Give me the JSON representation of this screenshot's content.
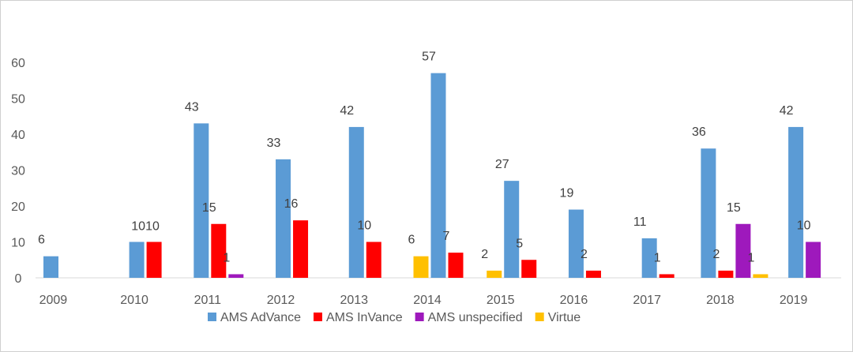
{
  "chart_data": {
    "type": "bar",
    "title": "",
    "xlabel": "",
    "ylabel": "",
    "ylim": [
      0,
      60
    ],
    "yticks": [
      0,
      10,
      20,
      30,
      40,
      50,
      60
    ],
    "grid": false,
    "legend_position": "bottom",
    "categories": [
      "2009",
      "2010",
      "2011",
      "2012",
      "2013",
      "2014",
      "2015",
      "2016",
      "2017",
      "2018",
      "2019"
    ],
    "series": [
      {
        "name": "AMS AdVance",
        "color": "#5B9BD5",
        "values": [
          6,
          10,
          43,
          33,
          42,
          57,
          27,
          19,
          11,
          36,
          42
        ]
      },
      {
        "name": "AMS InVance",
        "color": "#FF0000",
        "values": [
          null,
          10,
          15,
          16,
          10,
          7,
          5,
          2,
          1,
          2,
          null
        ]
      },
      {
        "name": "AMS unspecified",
        "color": "#9E19BC",
        "values": [
          null,
          null,
          1,
          null,
          null,
          null,
          null,
          null,
          null,
          15,
          10
        ]
      },
      {
        "name": "Virtue",
        "color": "#FFC000",
        "values": [
          null,
          null,
          null,
          null,
          null,
          6,
          2,
          null,
          null,
          1,
          null
        ]
      }
    ],
    "bar_order": [
      [
        [
          "AMS AdVance"
        ]
      ],
      [
        [
          "AMS AdVance"
        ],
        [
          "AMS InVance"
        ]
      ],
      [
        [
          "AMS AdVance"
        ],
        [
          "AMS InVance"
        ],
        [
          "AMS unspecified"
        ]
      ],
      [
        [
          "AMS AdVance"
        ],
        [
          "AMS InVance"
        ]
      ],
      [
        [
          "AMS AdVance"
        ],
        [
          "AMS InVance"
        ]
      ],
      [
        [
          "Virtue"
        ],
        [
          "AMS AdVance"
        ],
        [
          "AMS InVance"
        ]
      ],
      [
        [
          "Virtue"
        ],
        [
          "AMS AdVance"
        ],
        [
          "AMS InVance"
        ]
      ],
      [
        [
          "AMS AdVance"
        ],
        [
          "AMS InVance"
        ]
      ],
      [
        [
          "AMS AdVance"
        ],
        [
          "AMS InVance"
        ]
      ],
      [
        [
          "AMS AdVance"
        ],
        [
          "AMS InVance"
        ],
        [
          "AMS unspecified"
        ],
        [
          "Virtue"
        ]
      ],
      [
        [
          "AMS AdVance"
        ],
        [
          "AMS unspecified"
        ]
      ]
    ],
    "data_labels": {
      "2010": "1010"
    }
  }
}
